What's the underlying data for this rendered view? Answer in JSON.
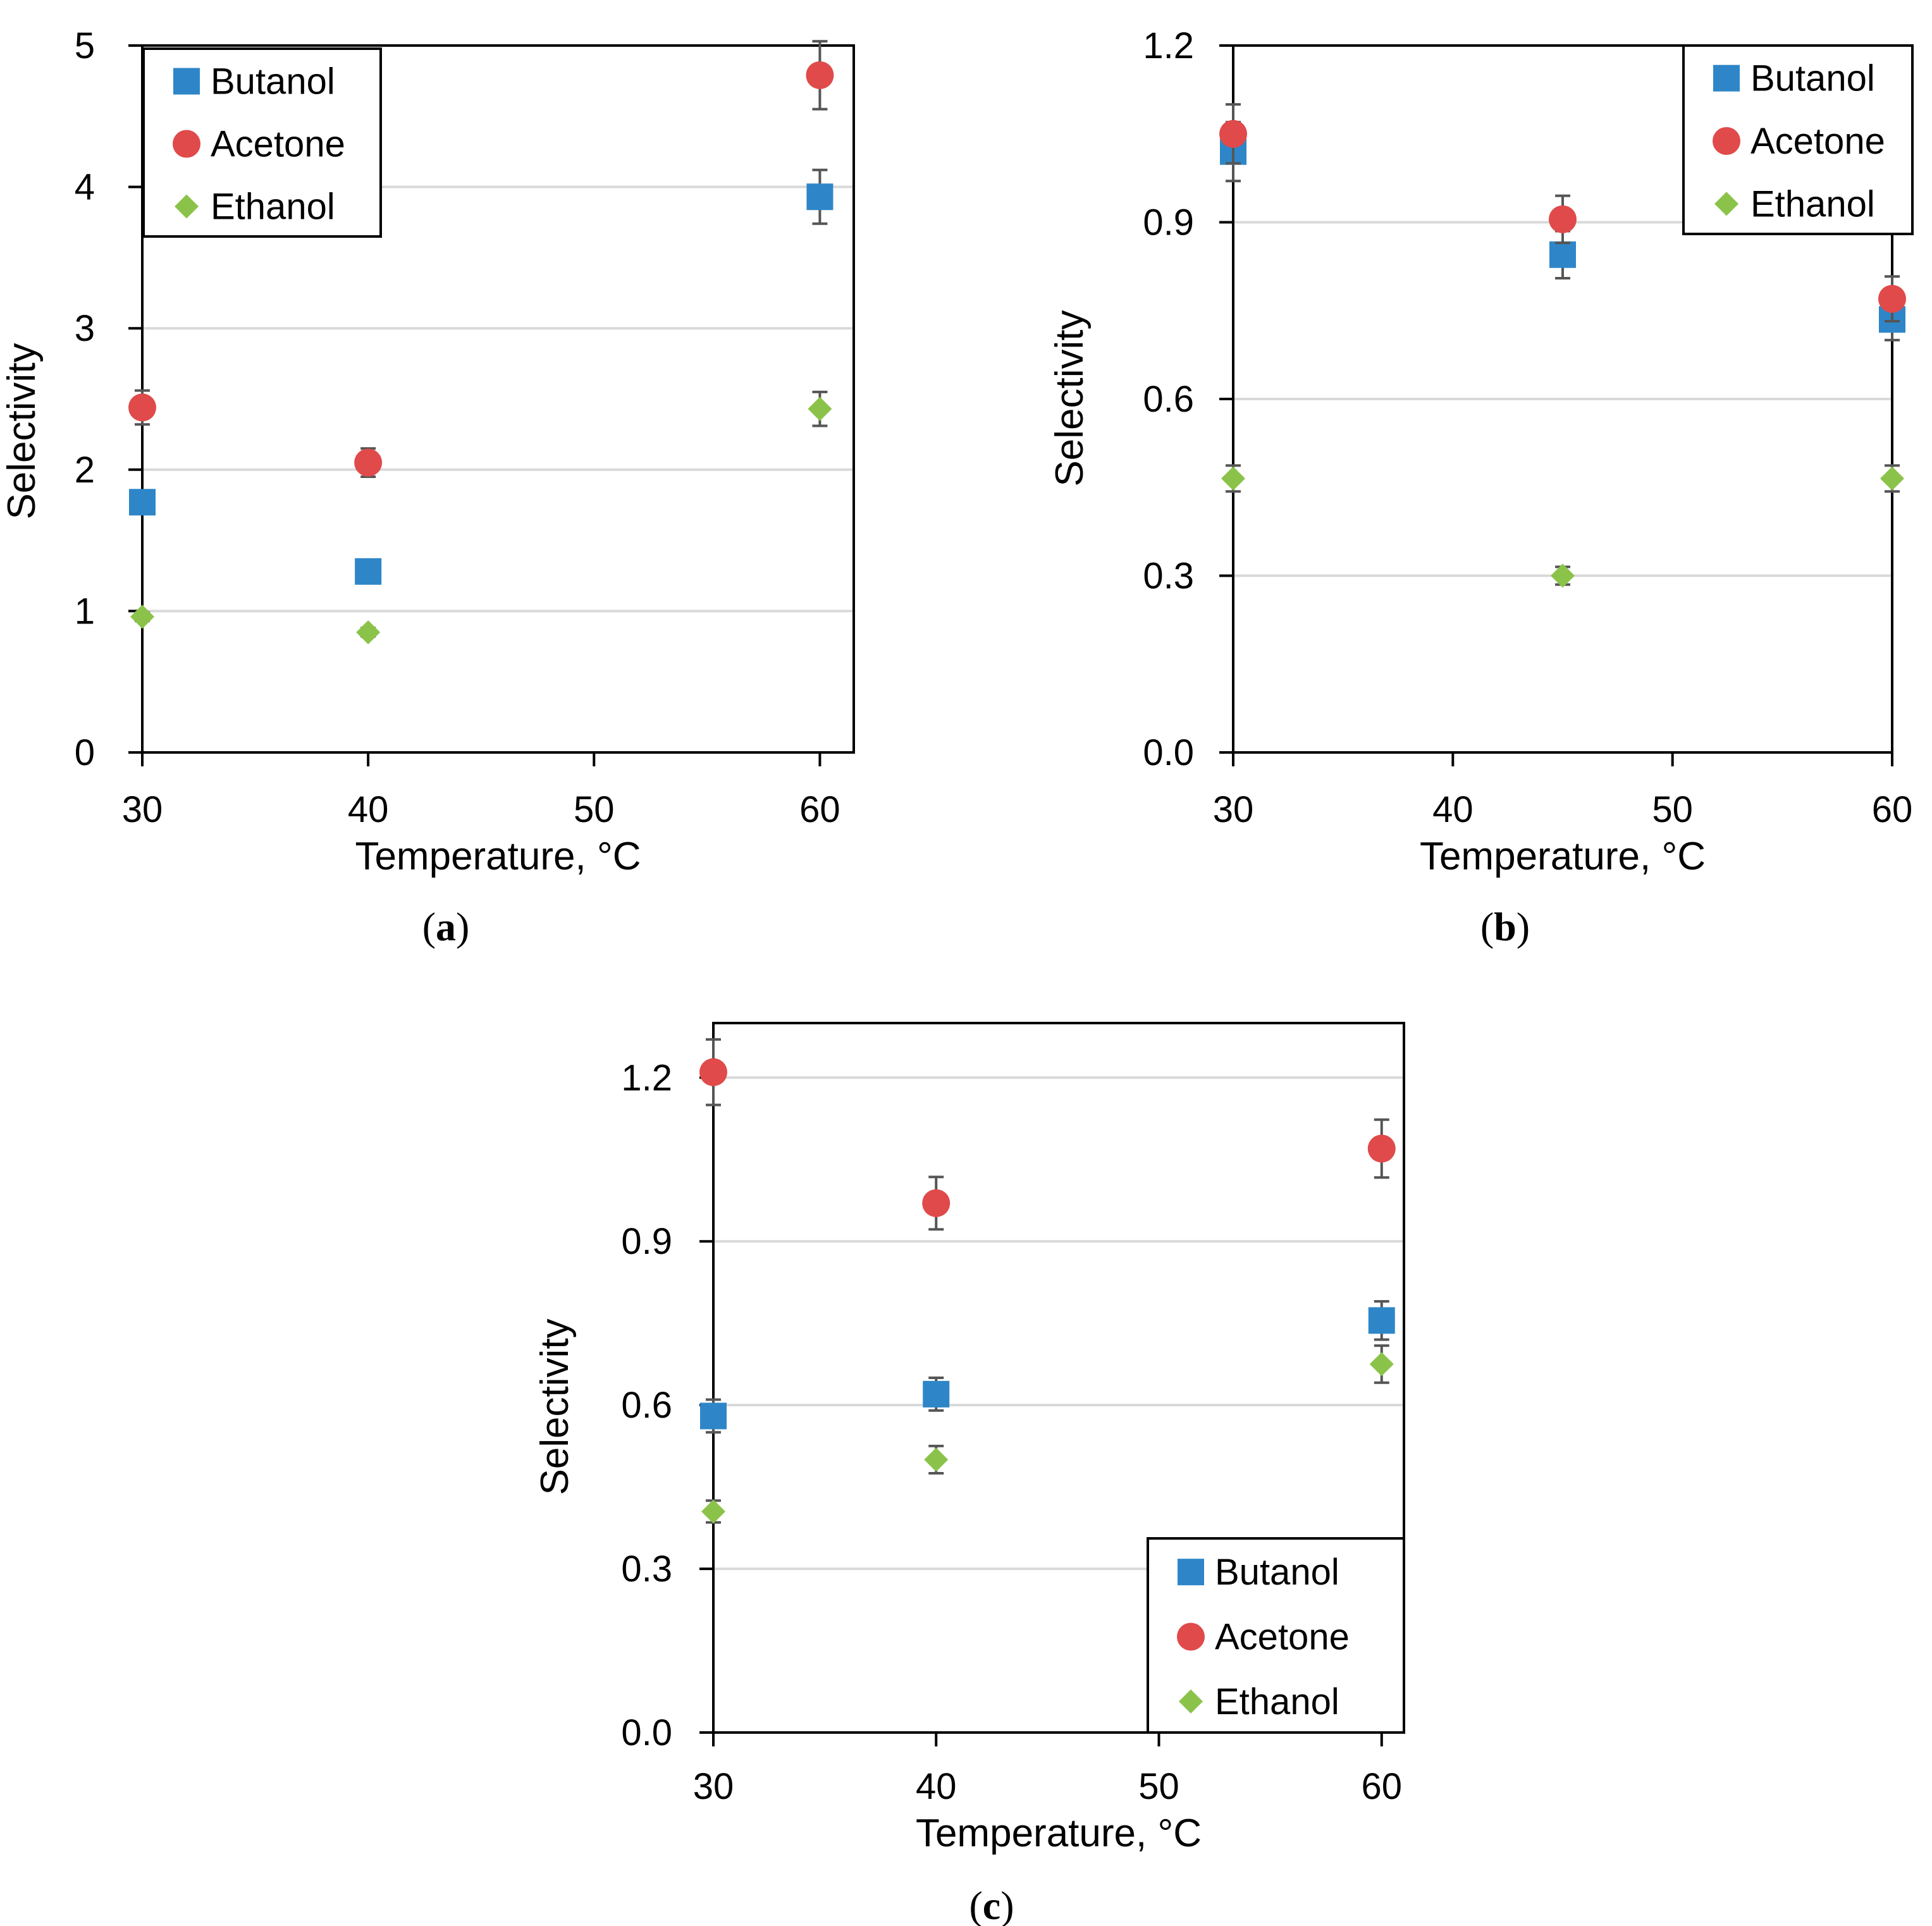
{
  "chart_data": [
    {
      "type": "scatter",
      "panel": "(a)",
      "panel_letter": "a",
      "title": "",
      "xlabel": "Temperature, °C",
      "ylabel": "Selectivity",
      "xlim": [
        30,
        61.5
      ],
      "ylim": [
        0,
        5
      ],
      "xticks": [
        30,
        40,
        50,
        60
      ],
      "yticks": [
        0,
        1,
        2,
        3,
        4,
        5
      ],
      "ytick_labels": [
        "0",
        "1",
        "2",
        "3",
        "4",
        "5"
      ],
      "grid": "horizontal",
      "legend": "top-left",
      "series": [
        {
          "name": "Butanol",
          "marker": "square",
          "color": "#2e86c8",
          "points": [
            {
              "x": 30,
              "y": 1.77,
              "err": 0.05
            },
            {
              "x": 40,
              "y": 1.28,
              "err": 0.04
            },
            {
              "x": 60,
              "y": 3.93,
              "err": 0.19
            }
          ]
        },
        {
          "name": "Acetone",
          "marker": "circle",
          "color": "#e04a4a",
          "points": [
            {
              "x": 30,
              "y": 2.44,
              "err": 0.12
            },
            {
              "x": 40,
              "y": 2.05,
              "err": 0.1
            },
            {
              "x": 60,
              "y": 4.79,
              "err": 0.24
            }
          ]
        },
        {
          "name": "Ethanol",
          "marker": "diamond",
          "color": "#8bc34a",
          "points": [
            {
              "x": 30,
              "y": 0.96,
              "err": 0.03
            },
            {
              "x": 40,
              "y": 0.85,
              "err": 0.03
            },
            {
              "x": 60,
              "y": 2.43,
              "err": 0.12
            }
          ]
        }
      ]
    },
    {
      "type": "scatter",
      "panel": "(b)",
      "panel_letter": "b",
      "title": "",
      "xlabel": "Temperature, °C",
      "ylabel": "Selectivity",
      "xlim": [
        30,
        60
      ],
      "ylim": [
        0,
        1.2
      ],
      "xticks": [
        30,
        40,
        50,
        60
      ],
      "yticks": [
        0,
        0.3,
        0.6,
        0.9,
        1.2
      ],
      "ytick_labels": [
        "0.0",
        "0.3",
        "0.6",
        "0.9",
        "1.2"
      ],
      "grid": "horizontal",
      "legend": "top-right",
      "series": [
        {
          "name": "Butanol",
          "marker": "square",
          "color": "#2e86c8",
          "points": [
            {
              "x": 30,
              "y": 1.02,
              "err": 0.05
            },
            {
              "x": 45,
              "y": 0.845,
              "err": 0.04
            },
            {
              "x": 60,
              "y": 0.735,
              "err": 0.035
            }
          ]
        },
        {
          "name": "Acetone",
          "marker": "circle",
          "color": "#e04a4a",
          "points": [
            {
              "x": 30,
              "y": 1.05,
              "err": 0.05
            },
            {
              "x": 45,
              "y": 0.905,
              "err": 0.04
            },
            {
              "x": 60,
              "y": 0.77,
              "err": 0.038
            }
          ]
        },
        {
          "name": "Ethanol",
          "marker": "diamond",
          "color": "#8bc34a",
          "points": [
            {
              "x": 30,
              "y": 0.465,
              "err": 0.022
            },
            {
              "x": 45,
              "y": 0.3,
              "err": 0.015
            },
            {
              "x": 60,
              "y": 0.465,
              "err": 0.022
            }
          ]
        }
      ]
    },
    {
      "type": "scatter",
      "panel": "(c)",
      "panel_letter": "c",
      "title": "",
      "xlabel": "Temperature, °C",
      "ylabel": "Selectivity",
      "xlim": [
        30,
        61
      ],
      "ylim": [
        0,
        1.3
      ],
      "xticks": [
        30,
        40,
        50,
        60
      ],
      "yticks": [
        0,
        0.3,
        0.6,
        0.9,
        1.2
      ],
      "ytick_labels": [
        "0.0",
        "0.3",
        "0.6",
        "0.9",
        "1.2"
      ],
      "grid": "horizontal",
      "legend": "bottom-right",
      "series": [
        {
          "name": "Butanol",
          "marker": "square",
          "color": "#2e86c8",
          "points": [
            {
              "x": 30,
              "y": 0.58,
              "err": 0.03
            },
            {
              "x": 40,
              "y": 0.62,
              "err": 0.03
            },
            {
              "x": 60,
              "y": 0.755,
              "err": 0.035
            }
          ]
        },
        {
          "name": "Acetone",
          "marker": "circle",
          "color": "#e04a4a",
          "points": [
            {
              "x": 30,
              "y": 1.21,
              "err": 0.06
            },
            {
              "x": 40,
              "y": 0.97,
              "err": 0.048
            },
            {
              "x": 60,
              "y": 1.07,
              "err": 0.053
            }
          ]
        },
        {
          "name": "Ethanol",
          "marker": "diamond",
          "color": "#8bc34a",
          "points": [
            {
              "x": 30,
              "y": 0.405,
              "err": 0.02
            },
            {
              "x": 40,
              "y": 0.5,
              "err": 0.025
            },
            {
              "x": 60,
              "y": 0.675,
              "err": 0.034
            }
          ]
        }
      ]
    }
  ]
}
